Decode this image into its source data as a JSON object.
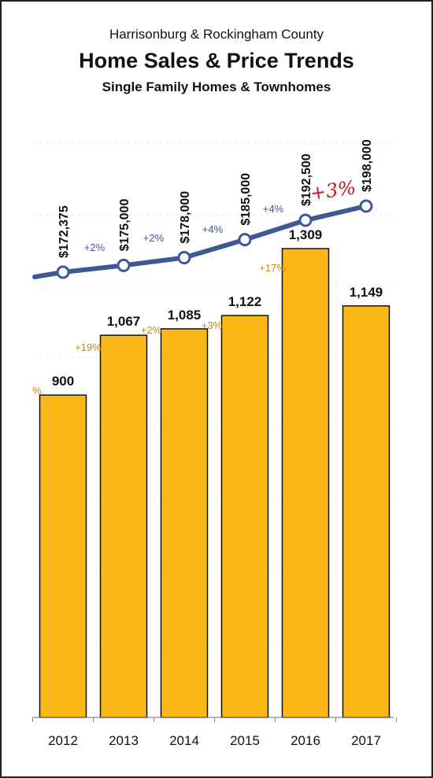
{
  "chart_data": {
    "type": "bar+line",
    "title": "Home Sales & Price Trends",
    "subtitle": "Harrisonburg & Rockingham County",
    "subtitle2": "Single Family Homes & Townhomes",
    "categories": [
      "2012",
      "2013",
      "2014",
      "2015",
      "2016",
      "2017"
    ],
    "series": [
      {
        "type": "bar",
        "values": [
          900,
          1067,
          1085,
          1122,
          1309,
          1149
        ],
        "value_labels": [
          "900",
          "1,067",
          "1,085",
          "1,122",
          "1,309",
          "1,149"
        ],
        "change_labels": [
          "%",
          "+19%",
          "+2%",
          "+3%",
          "+17%",
          ""
        ],
        "color": "#fbb715"
      },
      {
        "type": "line",
        "values": [
          172375,
          175000,
          178000,
          185000,
          192500,
          198000
        ],
        "value_labels": [
          "$172,375",
          "$175,000",
          "$178,000",
          "$185,000",
          "$192,500",
          "$198,000"
        ],
        "change_labels": [
          "+2%",
          "+2%",
          "+4%",
          "+4%",
          "+3%"
        ],
        "color": "#3e5893"
      }
    ],
    "annotation": "+3%",
    "annotation_color": "#c5161d",
    "grid": true
  }
}
